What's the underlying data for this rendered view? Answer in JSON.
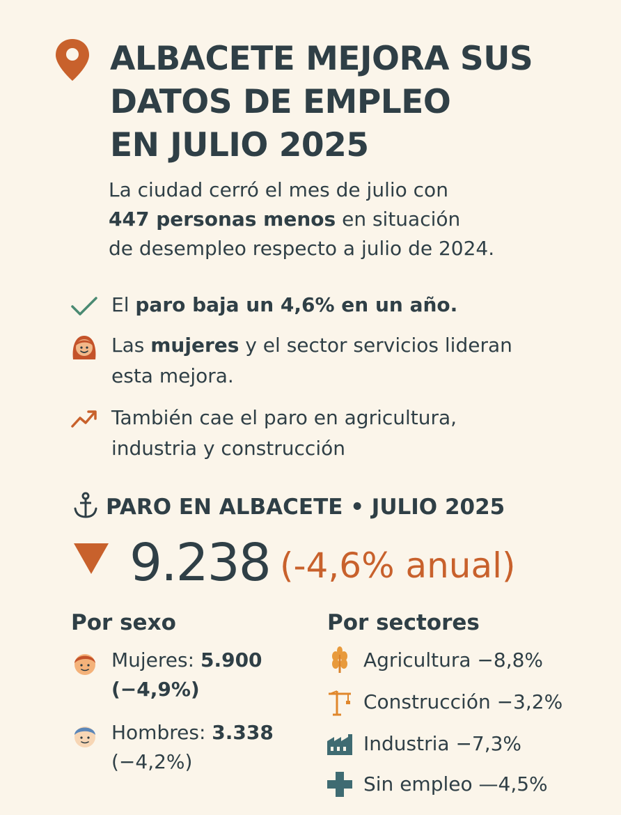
{
  "header": {
    "title_lines": [
      "ALBACETE MEJORA SUS",
      "DATOS DE EMPLEO",
      "EN JULIO 2025"
    ],
    "icon": "map-pin-icon",
    "accent_color": "#c8612c"
  },
  "intro": {
    "line1": "La ciudad cerró el mes de julio con",
    "line2_bold": "447 personas menos",
    "line2_rest": " en situación",
    "line3": "de desempleo respecto a julio de 2024."
  },
  "bullets": [
    {
      "icon": "check-icon",
      "pre": "El ",
      "bold": "paro baja un 4,6% en un año.",
      "post": ""
    },
    {
      "icon": "woman-icon",
      "pre": "Las ",
      "bold": "mujeres",
      "post": " y el sector servicios lideran",
      "line2": "esta mejora."
    },
    {
      "icon": "trend-icon",
      "line1": "También cae el paro en agricultura,",
      "line2": "industria y construcción"
    }
  ],
  "stats": {
    "heading": "PARO EN ALBACETE • JULIO 2025",
    "total": "9.238",
    "change": "(-4,6% anual)"
  },
  "by_sex": {
    "title": "Por sexo",
    "rows": [
      {
        "icon": "woman-face-icon",
        "label": "Mujeres: ",
        "value": "5.900",
        "change": "(−4,9%)"
      },
      {
        "icon": "man-face-icon",
        "label": "Hombres: ",
        "value": "3.338",
        "change": "(−4,2%)"
      }
    ]
  },
  "by_sector": {
    "title": "Por sectores",
    "rows": [
      {
        "icon": "wheat-icon",
        "text": "Agricultura −8,8%"
      },
      {
        "icon": "crane-icon",
        "text": "Construcción −3,2%"
      },
      {
        "icon": "factory-icon",
        "text": "Industria −7,3%"
      },
      {
        "icon": "plus-icon",
        "text": "Sin empleo —4,5%"
      }
    ]
  }
}
